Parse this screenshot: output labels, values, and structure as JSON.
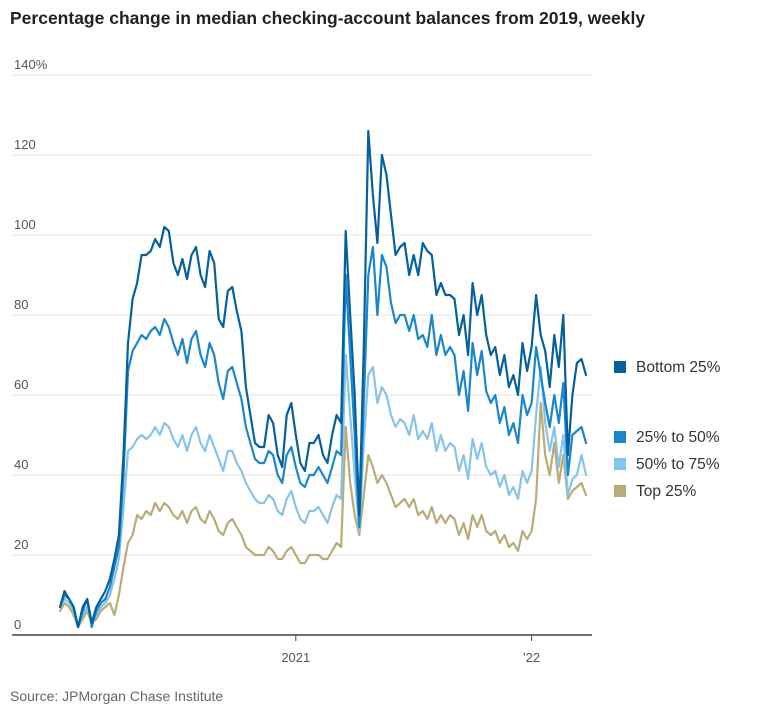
{
  "chart_data": {
    "type": "line",
    "title": "Percentage change in median checking-account balances from 2019, weekly",
    "source": "Source: JPMorgan Chase Institute",
    "y_ticks": [
      "0",
      "20",
      "40",
      "60",
      "80",
      "100",
      "120",
      "140%"
    ],
    "x_ticks": [
      {
        "label": "2021",
        "week": 52
      },
      {
        "label": "'22",
        "week": 104
      }
    ],
    "ylim": [
      0,
      140
    ],
    "xlim": [
      0,
      116
    ],
    "grid": "horizontal",
    "legend_placement": "right",
    "series": [
      {
        "name": "Bottom 25%",
        "color": "#05609c",
        "values": [
          7,
          11,
          9,
          7,
          2,
          7,
          9,
          3,
          7,
          9,
          11,
          14,
          19,
          25,
          45,
          73,
          84,
          88,
          95,
          95,
          96,
          99,
          97,
          102,
          101,
          93,
          90,
          94,
          89,
          95,
          97,
          90,
          87,
          96,
          93,
          79,
          77,
          86,
          87,
          81,
          76,
          62,
          55,
          48,
          47,
          47,
          55,
          53,
          45,
          42,
          55,
          58,
          50,
          43,
          41,
          48,
          48,
          50,
          45,
          43,
          50,
          55,
          53,
          101,
          80,
          60,
          30,
          72,
          126,
          110,
          98,
          120,
          115,
          105,
          95,
          97,
          98,
          90,
          95,
          90,
          98,
          96,
          95,
          85,
          88,
          85,
          85,
          84,
          75,
          80,
          70,
          88,
          80,
          85,
          75,
          70,
          72,
          65,
          70,
          62,
          65,
          60,
          73,
          66,
          72,
          85,
          75,
          71,
          62,
          75,
          67,
          80,
          45,
          60,
          68,
          69,
          65
        ]
      },
      {
        "name": "25% to 50%",
        "color": "#1a86cc",
        "values": [
          7,
          10,
          9,
          7,
          2,
          6,
          9,
          2,
          6,
          8,
          9,
          12,
          17,
          22,
          40,
          66,
          71,
          73,
          75,
          74,
          76,
          77,
          75,
          79,
          77,
          73,
          70,
          74,
          68,
          74,
          76,
          70,
          67,
          73,
          70,
          63,
          59,
          66,
          67,
          63,
          59,
          52,
          48,
          44,
          43,
          43,
          46,
          45,
          40,
          38,
          45,
          47,
          42,
          38,
          37,
          40,
          40,
          42,
          40,
          38,
          42,
          46,
          45,
          90,
          70,
          50,
          27,
          58,
          90,
          97,
          80,
          95,
          92,
          83,
          78,
          80,
          80,
          76,
          80,
          74,
          75,
          72,
          80,
          70,
          75,
          70,
          72,
          70,
          60,
          66,
          56,
          73,
          65,
          71,
          61,
          58,
          60,
          53,
          57,
          50,
          53,
          48,
          60,
          55,
          58,
          72,
          65,
          58,
          52,
          60,
          53,
          63,
          40,
          50,
          51,
          52,
          48
        ]
      },
      {
        "name": "50% to 75%",
        "color": "#88c3e8",
        "values": [
          7,
          9,
          8,
          6,
          2,
          5,
          7,
          3,
          5,
          7,
          8,
          10,
          14,
          19,
          32,
          46,
          47,
          49,
          50,
          49,
          50,
          52,
          50,
          53,
          52,
          49,
          47,
          50,
          46,
          50,
          52,
          48,
          46,
          50,
          47,
          44,
          41,
          46,
          46,
          43,
          41,
          38,
          36,
          34,
          33,
          33,
          35,
          34,
          31,
          30,
          34,
          36,
          32,
          29,
          28,
          31,
          31,
          32,
          30,
          28,
          32,
          35,
          34,
          70,
          55,
          40,
          26,
          48,
          65,
          67,
          58,
          62,
          60,
          55,
          52,
          54,
          53,
          50,
          55,
          49,
          51,
          49,
          53,
          46,
          50,
          46,
          48,
          47,
          41,
          45,
          39,
          49,
          44,
          48,
          42,
          40,
          41,
          37,
          40,
          35,
          37,
          34,
          41,
          38,
          41,
          55,
          67,
          53,
          46,
          52,
          42,
          50,
          35,
          39,
          40,
          45,
          40
        ]
      },
      {
        "name": "Top 25%",
        "color": "#b8ac78",
        "values": [
          6,
          8,
          7,
          5,
          2,
          4,
          6,
          3,
          4,
          6,
          7,
          8,
          5,
          10,
          17,
          23,
          25,
          30,
          29,
          31,
          30,
          33,
          31,
          33,
          32,
          30,
          29,
          31,
          28,
          31,
          32,
          29,
          28,
          31,
          29,
          26,
          25,
          28,
          29,
          27,
          25,
          22,
          21,
          20,
          20,
          20,
          22,
          21,
          19,
          19,
          21,
          22,
          20,
          18,
          18,
          20,
          20,
          20,
          19,
          19,
          21,
          23,
          22,
          52,
          38,
          30,
          25,
          35,
          45,
          42,
          38,
          40,
          38,
          35,
          32,
          33,
          34,
          32,
          34,
          30,
          31,
          29,
          32,
          28,
          30,
          28,
          30,
          29,
          25,
          28,
          24,
          30,
          27,
          30,
          26,
          25,
          26,
          23,
          25,
          22,
          23,
          21,
          26,
          24,
          26,
          34,
          58,
          45,
          40,
          48,
          38,
          45,
          34,
          36,
          37,
          38,
          35
        ]
      }
    ]
  }
}
